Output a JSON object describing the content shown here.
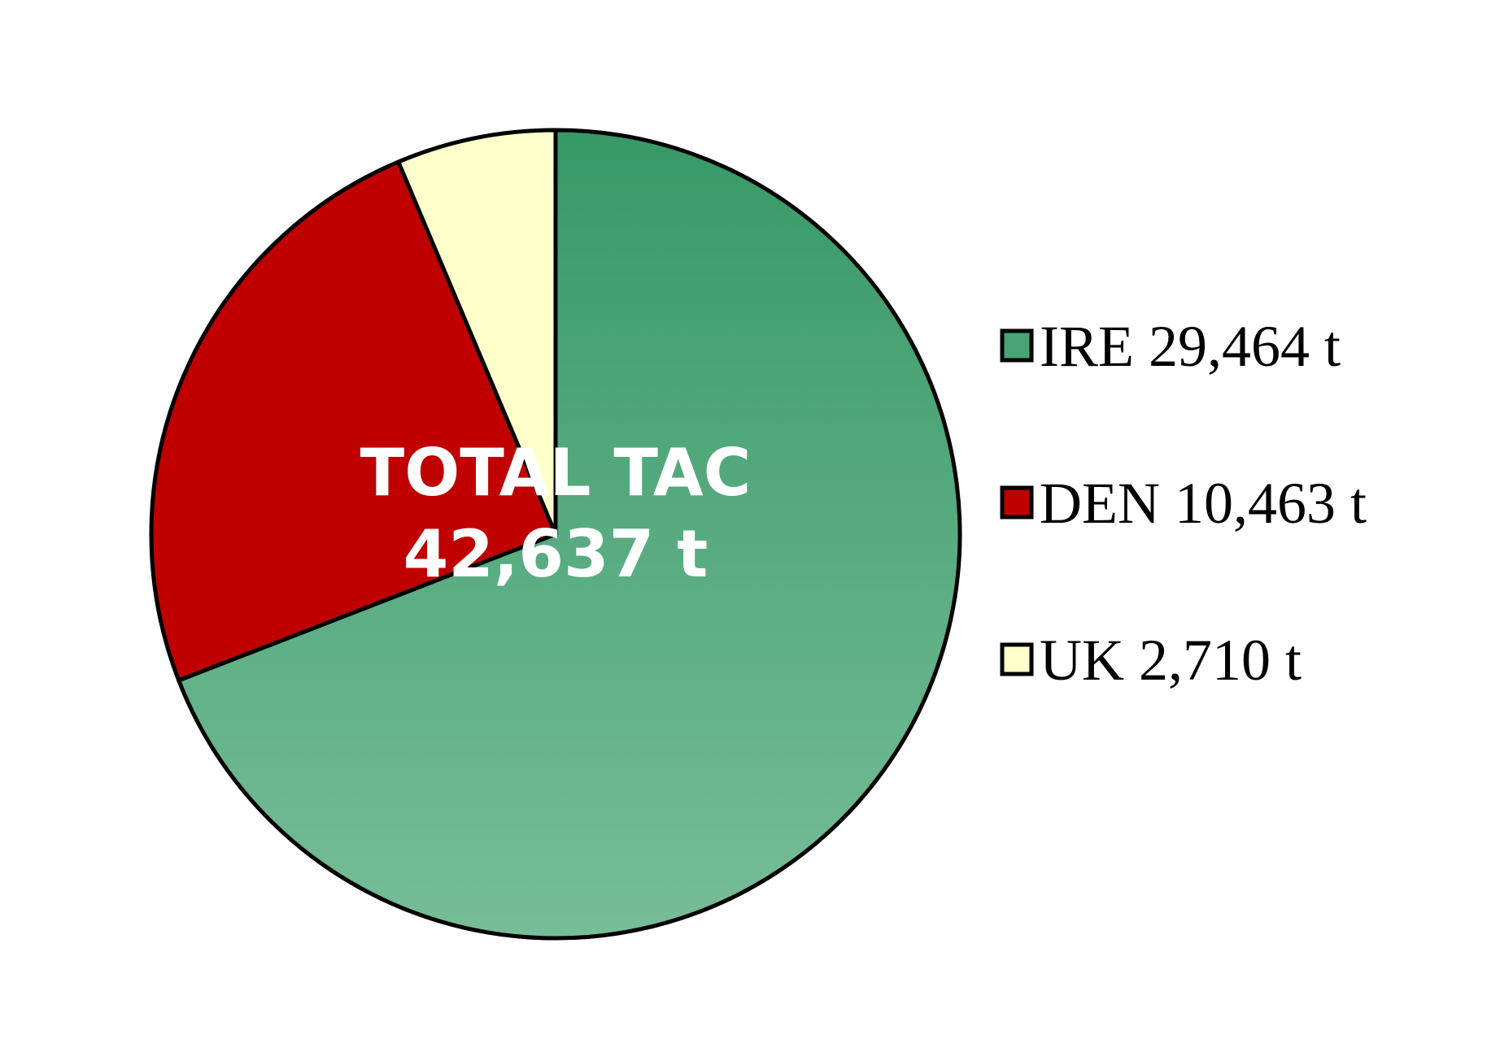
{
  "chart_data": {
    "type": "pie",
    "center_label": {
      "line1": "TOTAL TAC",
      "line2": "42,637 t"
    },
    "start_angle_deg": 0,
    "direction": "clockwise",
    "slices": [
      {
        "name": "IRE",
        "value": 29464,
        "label": "IRE 29,464 t",
        "color_top": "#379967",
        "color_bottom": "#77bd98"
      },
      {
        "name": "DEN",
        "value": 10463,
        "label": "DEN 10,463 t",
        "color_top": "#c00000",
        "color_bottom": "#c00000"
      },
      {
        "name": "UK",
        "value": 2710,
        "label": "UK 2,710 t",
        "color_top": "#ffffcc",
        "color_bottom": "#ffffcc"
      }
    ],
    "legend_position": "right",
    "outline_color": "#000000"
  }
}
